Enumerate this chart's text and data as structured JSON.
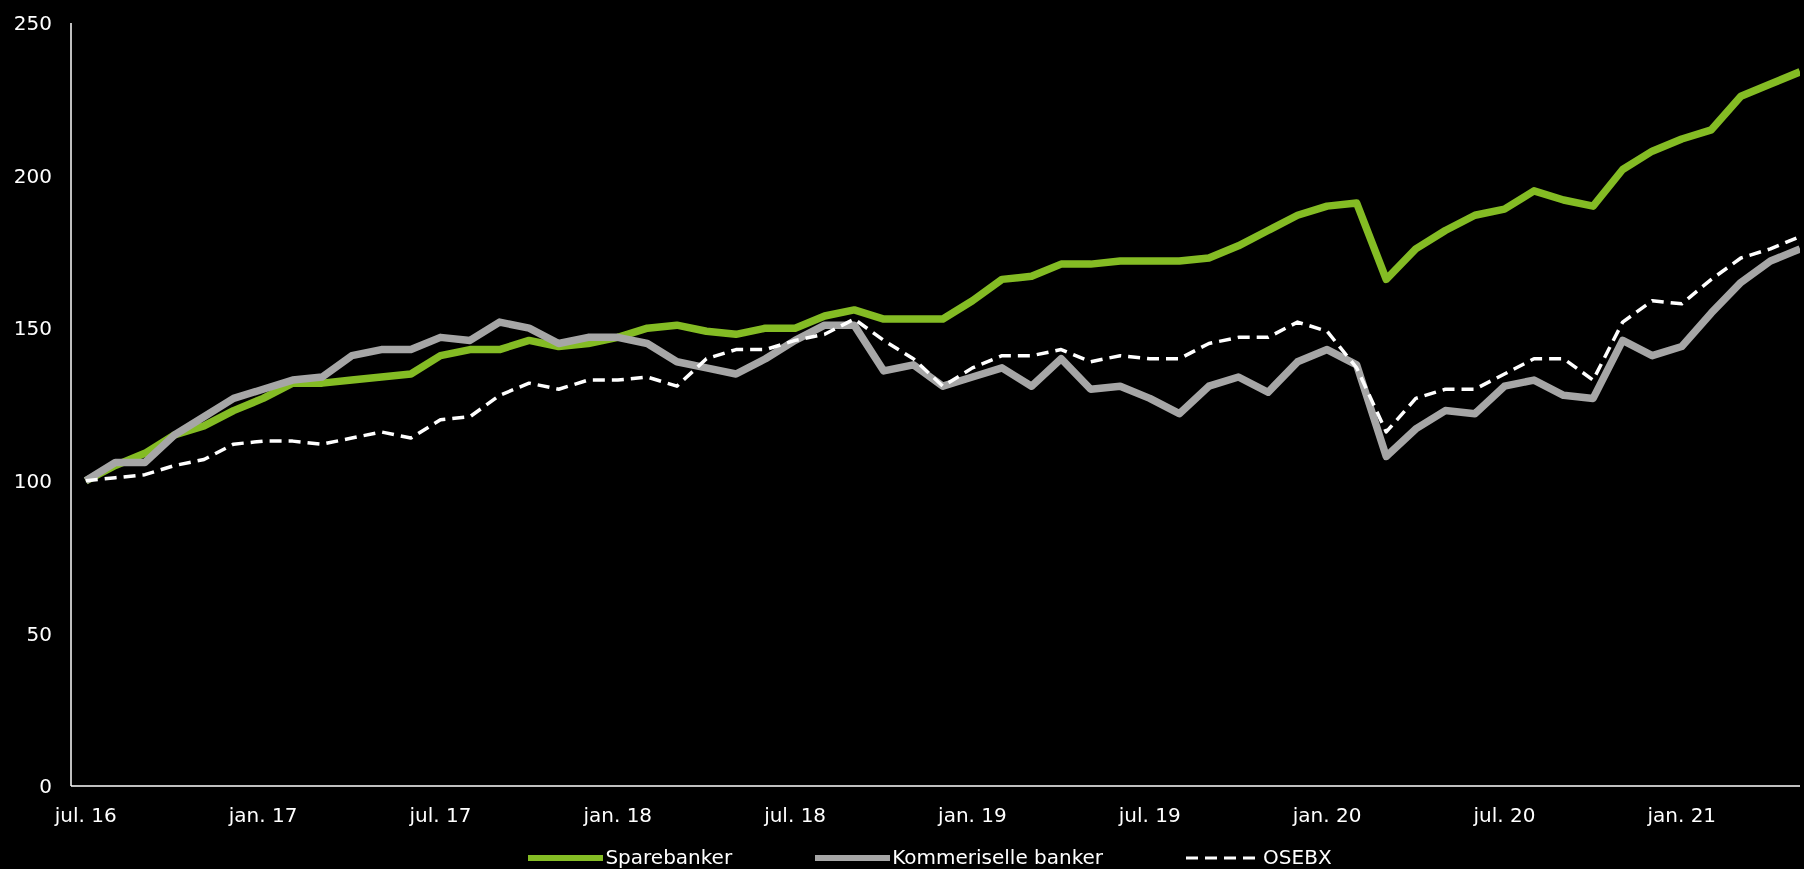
{
  "chart_data": {
    "type": "line",
    "categories": [
      "jul. 16",
      null,
      null,
      null,
      null,
      null,
      "jan. 17",
      null,
      null,
      null,
      null,
      null,
      "jul. 17",
      null,
      null,
      null,
      null,
      null,
      "jan. 18",
      null,
      null,
      null,
      null,
      null,
      "jul. 18",
      null,
      null,
      null,
      null,
      null,
      "jan. 19",
      null,
      null,
      null,
      null,
      null,
      "jul. 19",
      null,
      null,
      null,
      null,
      null,
      "jan. 20",
      null,
      null,
      null,
      null,
      null,
      "jul. 20",
      null,
      null,
      null,
      null,
      null,
      "jan. 21",
      null,
      null,
      null,
      null
    ],
    "series": [
      {
        "name": "Sparebanker",
        "color": "#84bc24",
        "values": [
          100,
          105,
          109,
          115,
          118,
          123,
          127,
          132,
          132,
          133,
          134,
          135,
          141,
          143,
          143,
          146,
          144,
          145,
          147,
          150,
          151,
          149,
          148,
          150,
          150,
          154,
          156,
          153,
          153,
          153,
          159,
          166,
          167,
          171,
          171,
          172,
          172,
          172,
          173,
          177,
          182,
          187,
          190,
          191,
          166,
          176,
          182,
          187,
          189,
          195,
          192,
          190,
          202,
          208,
          212,
          215,
          226,
          230,
          234
        ]
      },
      {
        "name": "Kommeriselle banker",
        "color": "#a6a6a6",
        "values": [
          100,
          106,
          106,
          115,
          121,
          127,
          130,
          133,
          134,
          141,
          143,
          143,
          147,
          146,
          152,
          150,
          145,
          147,
          147,
          145,
          139,
          137,
          135,
          140,
          146,
          151,
          151,
          136,
          138,
          131,
          134,
          137,
          131,
          140,
          130,
          131,
          127,
          122,
          131,
          134,
          129,
          139,
          143,
          138,
          108,
          117,
          123,
          122,
          131,
          133,
          128,
          127,
          146,
          141,
          144,
          155,
          165,
          172,
          176
        ]
      },
      {
        "name": "OSEBX",
        "color": "#ffffff",
        "line_style": "dashed",
        "values": [
          100,
          101,
          102,
          105,
          107,
          112,
          113,
          113,
          112,
          114,
          116,
          114,
          120,
          121,
          128,
          132,
          130,
          133,
          133,
          134,
          131,
          140,
          143,
          143,
          146,
          148,
          153,
          146,
          140,
          131,
          137,
          141,
          141,
          143,
          139,
          141,
          140,
          140,
          145,
          147,
          147,
          152,
          149,
          137,
          116,
          127,
          130,
          130,
          135,
          140,
          140,
          133,
          152,
          159,
          158,
          166,
          173,
          176,
          180
        ]
      }
    ],
    "ylim": [
      0,
      250
    ],
    "yticks": [
      0,
      50,
      100,
      150,
      200,
      250
    ],
    "legend": "bottom",
    "marker": "none",
    "line_style": "solid"
  }
}
